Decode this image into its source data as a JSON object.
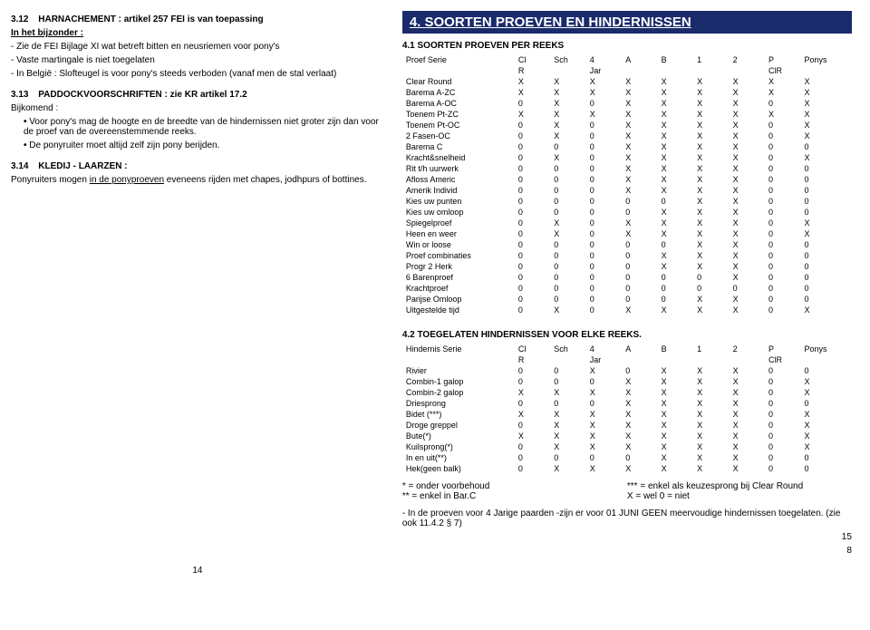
{
  "left": {
    "sec312_num": "3.12",
    "sec312_title": "HARNACHEMENT : artikel 257 FEI is van toepassing",
    "sub_head": "In het bijzonder :",
    "li1": "- Zie de FEI Bijlage XI  wat betreft bitten en neusriemen voor pony's",
    "li2": "- Vaste martingale is niet toegelaten",
    "li3": "- In België : Slofteugel is voor pony's steeds verboden (vanaf men de stal verlaat)",
    "sec313_num": "3.13",
    "sec313_title": "PADDOCKVOORSCHRIFTEN : zie KR artikel 17.2",
    "bijk": "Bijkomend :",
    "b1": "Voor pony's mag de hoogte en de breedte van de hindernissen niet groter zijn dan voor de proef van de overeenstemmende reeks.",
    "b2": "De ponyruiter moet altijd zelf zijn pony berijden.",
    "sec314_num": "3.14",
    "sec314_title": "KLEDIJ - LAARZEN :",
    "sec314_body_pre": "Ponyruiters mogen ",
    "sec314_body_ul": "in de ponyproeven",
    "sec314_body_post": " eveneens rijden met chapes, jodhpurs of bottines.",
    "page_num": "14"
  },
  "right": {
    "bar": "4.  SOORTEN PROEVEN EN HINDERNISSEN",
    "sec41": "4.1      SOORTEN PROEVEN PER REEKS",
    "t1_head1": [
      "Proef    Serie",
      "Cl",
      "Sch",
      "4",
      "A",
      "B",
      "1",
      "2",
      "P",
      "Ponys"
    ],
    "t1_head2": [
      "",
      "R",
      "",
      "Jar",
      "",
      "",
      "",
      "",
      "ClR",
      ""
    ],
    "t1_rows": [
      [
        "Clear Round",
        "X",
        "X",
        "X",
        "X",
        "X",
        "X",
        "X",
        "X",
        "X"
      ],
      [
        "Barema A-ZC",
        "X",
        "X",
        "X",
        "X",
        "X",
        "X",
        "X",
        "X",
        "X"
      ],
      [
        "Barema A-OC",
        "0",
        "X",
        "0",
        "X",
        "X",
        "X",
        "X",
        "0",
        "X"
      ],
      [
        "Toenem Pt-ZC",
        "X",
        "X",
        "X",
        "X",
        "X",
        "X",
        "X",
        "X",
        "X"
      ],
      [
        "Toenem Pt-OC",
        "0",
        "X",
        "0",
        "X",
        "X",
        "X",
        "X",
        "0",
        "X"
      ],
      [
        "2 Fasen-OC",
        "0",
        "X",
        "0",
        "X",
        "X",
        "X",
        "X",
        "0",
        "X"
      ],
      [
        "Barema C",
        "0",
        "0",
        "0",
        "X",
        "X",
        "X",
        "X",
        "0",
        "0"
      ],
      [
        "Kracht&snelheid",
        "0",
        "X",
        "0",
        "X",
        "X",
        "X",
        "X",
        "0",
        "X"
      ],
      [
        "Rit t/h uurwerk",
        "0",
        "0",
        "0",
        "X",
        "X",
        "X",
        "X",
        "0",
        "0"
      ],
      [
        "Afloss Americ",
        "0",
        "0",
        "0",
        "X",
        "X",
        "X",
        "X",
        "0",
        "0"
      ],
      [
        "Amerik Individ",
        "0",
        "0",
        "0",
        "X",
        "X",
        "X",
        "X",
        "0",
        "0"
      ],
      [
        "Kies uw punten",
        "0",
        "0",
        "0",
        "0",
        "0",
        "X",
        "X",
        "0",
        "0"
      ],
      [
        "Kies uw omloop",
        "0",
        "0",
        "0",
        "0",
        "X",
        "X",
        "X",
        "0",
        "0"
      ],
      [
        "Spiegelproef",
        "0",
        "X",
        "0",
        "X",
        "X",
        "X",
        "X",
        "0",
        "X"
      ],
      [
        "Heen en weer",
        "0",
        "X",
        "0",
        "X",
        "X",
        "X",
        "X",
        "0",
        "X"
      ],
      [
        "Win or loose",
        "0",
        "0",
        "0",
        "0",
        "0",
        "X",
        "X",
        "0",
        "0"
      ],
      [
        "Proef combinaties",
        "0",
        "0",
        "0",
        "0",
        "X",
        "X",
        "X",
        "0",
        "0"
      ],
      [
        "Progr 2 Herk",
        "0",
        "0",
        "0",
        "0",
        "X",
        "X",
        "X",
        "0",
        "0"
      ],
      [
        "6 Barenproef",
        "0",
        "0",
        "0",
        "0",
        "0",
        "0",
        "X",
        "0",
        "0"
      ],
      [
        "Krachtproef",
        "0",
        "0",
        "0",
        "0",
        "0",
        "0",
        "0",
        "0",
        "0"
      ],
      [
        "Parijse Omloop",
        "0",
        "0",
        "0",
        "0",
        "0",
        "X",
        "X",
        "0",
        "0"
      ],
      [
        "Uitgestelde tijd",
        "0",
        "X",
        "0",
        "X",
        "X",
        "X",
        "X",
        "0",
        "X"
      ]
    ],
    "sec42": "4.2      TOEGELATEN HINDERNISSEN VOOR ELKE REEKS.",
    "t2_head1": [
      "Hindernis  Serie",
      "Cl",
      "Sch",
      "4",
      "A",
      "B",
      "1",
      "2",
      "P",
      "Ponys"
    ],
    "t2_head2": [
      "",
      "R",
      "",
      "Jar",
      "",
      "",
      "",
      "",
      "ClR",
      ""
    ],
    "t2_rows": [
      [
        "Rivier",
        "0",
        "0",
        "X",
        "0",
        "X",
        "X",
        "X",
        "0",
        "0"
      ],
      [
        "Combin-1 galop",
        "0",
        "0",
        "0",
        "X",
        "X",
        "X",
        "X",
        "0",
        "X"
      ],
      [
        "Combin-2 galop",
        "X",
        "X",
        "X",
        "X",
        "X",
        "X",
        "X",
        "0",
        "X"
      ],
      [
        "Driesprong",
        "0",
        "0",
        "0",
        "X",
        "X",
        "X",
        "X",
        "0",
        "0"
      ],
      [
        "Bidet (***)",
        "X",
        "X",
        "X",
        "X",
        "X",
        "X",
        "X",
        "0",
        "X"
      ],
      [
        "Droge greppel",
        "0",
        "X",
        "X",
        "X",
        "X",
        "X",
        "X",
        "0",
        "X"
      ],
      [
        "Bute(*)",
        "X",
        "X",
        "X",
        "X",
        "X",
        "X",
        "X",
        "0",
        "X"
      ],
      [
        "Kuilsprong(*)",
        "0",
        "X",
        "X",
        "X",
        "X",
        "X",
        "X",
        "0",
        "X"
      ],
      [
        "In en uit(**)",
        "0",
        "0",
        "0",
        "0",
        "X",
        "X",
        "X",
        "0",
        "0"
      ],
      [
        "Hek(geen balk)",
        "0",
        "X",
        "X",
        "X",
        "X",
        "X",
        "X",
        "0",
        "0"
      ]
    ],
    "leg_l1a": "*  = onder voorbehoud",
    "leg_l1b": "*** = enkel als keuzesprong bij Clear Round",
    "leg_l2a": "** = enkel in Bar.C",
    "leg_l2b": "X  = wel              0 = niet",
    "note": "-    In de proeven voor 4 Jarige paarden -zijn er voor 01 JUNI GEEN meervoudige hindernissen toegelaten. (zie ook 11.4.2 § 7)",
    "pn15": "15",
    "pn8": "8"
  }
}
